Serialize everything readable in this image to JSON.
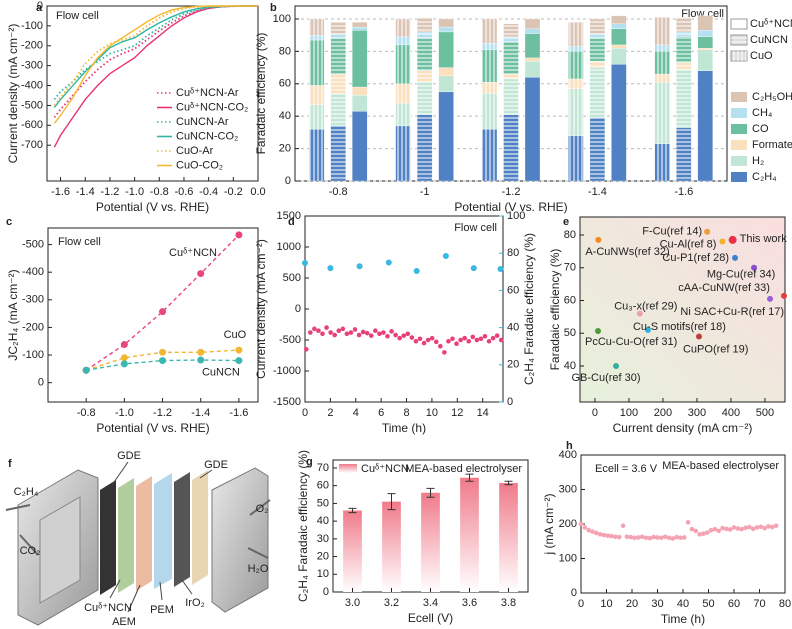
{
  "chart_data": [
    {
      "panel": "a",
      "type": "line",
      "annotation": "Flow cell",
      "xlabel": "Potential (V vs. RHE)",
      "ylabel": "Current density (mA cm⁻²)",
      "x": [
        -1.65,
        -1.6,
        -1.5,
        -1.4,
        -1.3,
        -1.2,
        -1.1,
        -1.0,
        -0.9,
        -0.8,
        -0.7,
        -0.6,
        -0.5,
        -0.4,
        -0.3,
        -0.2,
        -0.1,
        0
      ],
      "xlim": [
        -1.71,
        0
      ],
      "xticks": [
        -1.6,
        -1.4,
        -1.2,
        {
          "value": -1,
          "label": "-1.0"
        },
        -0.8,
        -0.6,
        -0.4,
        -0.2,
        {
          "value": 0,
          "label": "0.0"
        }
      ],
      "ylim": [
        -880,
        0
      ],
      "yticks": [
        -700,
        -600,
        -500,
        -400,
        -300,
        -200,
        -100,
        0
      ],
      "legend": "right",
      "series": [
        {
          "name": "Cuᵟ⁺NCN-Ar",
          "color": "#e8336e",
          "style": "dotted",
          "values": [
            -560,
            -520,
            -450,
            -380,
            -320,
            -270,
            -240,
            -215,
            -170,
            -125,
            -85,
            -50,
            -25,
            -10,
            -3,
            -1,
            0,
            0
          ]
        },
        {
          "name": "Cuᵟ⁺NCN-CO₂",
          "color": "#e8336e",
          "style": "solid",
          "values": [
            -710,
            -650,
            -560,
            -470,
            -400,
            -340,
            -300,
            -260,
            -200,
            -150,
            -100,
            -60,
            -30,
            -12,
            -4,
            -1,
            0,
            0
          ]
        },
        {
          "name": "CuNCN-Ar",
          "color": "#2fb5a5",
          "style": "dotted",
          "values": [
            -470,
            -430,
            -380,
            -320,
            -280,
            -240,
            -220,
            -200,
            -150,
            -110,
            -70,
            -40,
            -20,
            -8,
            -3,
            -1,
            0,
            0
          ]
        },
        {
          "name": "CuNCN-CO₂",
          "color": "#2fb5a5",
          "style": "solid",
          "values": [
            -510,
            -470,
            -400,
            -330,
            -270,
            -210,
            -180,
            -160,
            -120,
            -85,
            -55,
            -30,
            -14,
            -5,
            -2,
            0,
            0,
            0
          ]
        },
        {
          "name": "CuO-Ar",
          "color": "#f5b82e",
          "style": "dotted",
          "values": [
            -500,
            -460,
            -380,
            -290,
            -230,
            -190,
            -170,
            -150,
            -100,
            -60,
            -30,
            -12,
            -4,
            -1,
            0,
            0,
            0,
            0
          ]
        },
        {
          "name": "CuO-CO₂",
          "color": "#f5b82e",
          "style": "solid",
          "values": [
            -590,
            -550,
            -460,
            -350,
            -260,
            -200,
            -160,
            -120,
            -80,
            -45,
            -20,
            -8,
            -2,
            0,
            0,
            0,
            0,
            0
          ]
        }
      ]
    },
    {
      "panel": "b",
      "type": "stacked-bar",
      "annotation": "Flow cell",
      "xlabel": "Potential (V vs. RHE)",
      "ylabel": "Faradaic efficiency (%)",
      "categories": [
        "-0.8",
        "-1",
        "-1.2",
        "-1.4",
        "-1.6"
      ],
      "ylim": [
        0,
        108
      ],
      "yticks": [
        0,
        20,
        40,
        60,
        80,
        100
      ],
      "grid": true,
      "legend": "right",
      "groups": [
        {
          "name": "CuO",
          "color": "#f5b82e",
          "pattern": "vertical"
        },
        {
          "name": "CuNCN",
          "color": "#2fb5a5",
          "pattern": "horizontal"
        },
        {
          "name": "Cuᵟ⁺NCN",
          "color": "#e8336e",
          "pattern": "solid"
        }
      ],
      "series": [
        {
          "name": "C₂H₄",
          "color": "#4f81c4",
          "values": [
            [
              32,
              34,
              43
            ],
            [
              34,
              41,
              55
            ],
            [
              32,
              41,
              64
            ],
            [
              28,
              39,
              72
            ],
            [
              23,
              33,
              68
            ]
          ]
        },
        {
          "name": "H₂",
          "color": "#c2e6d6",
          "values": [
            [
              15,
              20,
              10
            ],
            [
              14,
              20,
              10
            ],
            [
              22,
              22,
              10
            ],
            [
              29,
              31,
              10
            ],
            [
              38,
              36,
              13
            ]
          ]
        },
        {
          "name": "Formate",
          "color": "#fbe0bd",
          "values": [
            [
              12,
              12,
              5
            ],
            [
              12,
              7,
              5
            ],
            [
              7,
              3,
              2
            ],
            [
              6,
              4,
              2
            ],
            [
              5,
              4,
              1
            ]
          ]
        },
        {
          "name": "CO",
          "color": "#6cbf9f",
          "values": [
            [
              28,
              22,
              35
            ],
            [
              24,
              20,
              22
            ],
            [
              20,
              20,
              15
            ],
            [
              17,
              14,
              10
            ],
            [
              14,
              16,
              7
            ]
          ]
        },
        {
          "name": "CH₄",
          "color": "#b5e0f0",
          "values": [
            [
              3,
              3,
              2
            ],
            [
              5,
              4,
              3
            ],
            [
              4,
              3,
              3
            ],
            [
              3,
              3,
              3
            ],
            [
              4,
              3,
              4
            ]
          ]
        },
        {
          "name": "C₂H₅OH",
          "color": "#dcc4b5",
          "values": [
            [
              10,
              7,
              3
            ],
            [
              11,
              9,
              5
            ],
            [
              15,
              8,
              6
            ],
            [
              15,
              9,
              5
            ],
            [
              17,
              9,
              9
            ]
          ]
        }
      ]
    },
    {
      "panel": "c",
      "type": "line",
      "annotation": "Flow cell",
      "xlabel": "Potential (V vs. RHE)",
      "ylabel": "JC₂H₄ (mA cm⁻²)",
      "markers": true,
      "legend": "inline",
      "x": [
        -0.8,
        -1.0,
        -1.2,
        -1.4,
        -1.6
      ],
      "xlim": [
        -0.6,
        -1.7
      ],
      "xticks": [
        -0.8,
        {
          "value": -1,
          "label": "-1.0"
        },
        -1.2,
        -1.4,
        -1.6
      ],
      "ylim": [
        70,
        -560
      ],
      "yticks": [
        0,
        -100,
        -200,
        -300,
        -400,
        -500
      ],
      "series": [
        {
          "name": "Cuᵟ⁺NCN",
          "color": "#e8467f",
          "style": "dashed",
          "values": [
            -45,
            -138,
            -257,
            -395,
            -535
          ]
        },
        {
          "name": "CuO",
          "color": "#f2b632",
          "style": "dashed",
          "values": [
            -45,
            -90,
            -110,
            -110,
            -118
          ]
        },
        {
          "name": "CuNCN",
          "color": "#3bb6b0",
          "style": "dashed",
          "values": [
            -45,
            -68,
            -80,
            -82,
            -80
          ]
        }
      ]
    },
    {
      "panel": "d",
      "type": "scatter",
      "annotation": "Flow cell",
      "xlabel": "Time (h)",
      "ylabel": "Current density (mA cm⁻²)",
      "y2label": "C₂H₄ Faradaic efficiency (%)",
      "xlim": [
        0,
        15.6
      ],
      "xticks": [
        0,
        2,
        4,
        6,
        8,
        10,
        12,
        14
      ],
      "ylim": [
        -1500,
        1500
      ],
      "yticks": [
        -1500,
        -1000,
        -500,
        0,
        500,
        1000,
        1500
      ],
      "y2lim": [
        0,
        100
      ],
      "y2ticks": [
        0,
        20,
        40,
        60,
        80,
        100
      ],
      "series": [
        {
          "color": "#e8407a",
          "x": [
            0.1,
            0.42,
            0.74,
            1.06,
            1.38,
            1.7,
            2.02,
            2.34,
            2.66,
            2.98,
            3.3,
            3.62,
            3.94,
            4.26,
            4.58,
            4.9,
            5.22,
            5.54,
            5.86,
            6.18,
            6.5,
            6.82,
            7.14,
            7.46,
            7.78,
            8.1,
            8.42,
            8.74,
            9.06,
            9.38,
            9.7,
            10.02,
            10.34,
            10.66,
            10.98,
            11.3,
            11.62,
            11.94,
            12.26,
            12.58,
            12.9,
            13.22,
            13.54,
            13.86,
            14.18,
            14.5,
            14.82,
            15.14,
            15.46
          ],
          "values": [
            -650,
            -380,
            -320,
            -350,
            -400,
            -300,
            -380,
            -420,
            -350,
            -320,
            -400,
            -380,
            -330,
            -420,
            -370,
            -390,
            -430,
            -350,
            -400,
            -380,
            -440,
            -360,
            -420,
            -470,
            -430,
            -400,
            -460,
            -520,
            -480,
            -550,
            -500,
            -470,
            -530,
            -600,
            -700,
            -520,
            -480,
            -560,
            -500,
            -470,
            -520,
            -450,
            -500,
            -480,
            -440,
            -520,
            -470,
            -430,
            -500
          ]
        },
        {
          "color": "#39b8e0",
          "axis": "y2",
          "x": [
            0,
            2,
            4.3,
            6.6,
            8.8,
            11.1,
            13.3,
            15.4
          ],
          "values": [
            74.7,
            72,
            73,
            75,
            70.4,
            78.5,
            72,
            71.5
          ]
        }
      ]
    },
    {
      "panel": "e",
      "type": "scatter",
      "xlabel": "Current density (mA cm⁻²)",
      "ylabel": "Faradaic efficiency (%)",
      "xlim": [
        -44,
        559
      ],
      "xticks": [
        0,
        100,
        200,
        300,
        400,
        500
      ],
      "ylim": [
        29,
        85.5
      ],
      "yticks": [
        40,
        50,
        60,
        70,
        80
      ],
      "points": [
        {
          "label": "This work",
          "color": "#e8334a",
          "x": 405,
          "y": 78.5
        },
        {
          "label": "F-Cu(ref 14)",
          "color": "#f29a3a",
          "x": 330,
          "y": 81
        },
        {
          "label": "Cu-Al(ref 8)",
          "color": "#f0b030",
          "x": 375,
          "y": 78
        },
        {
          "label": "A-CuNWs(ref 32)",
          "color": "#f08a20",
          "x": 10,
          "y": 78.5
        },
        {
          "label": "Cu-P1(ref 28)",
          "color": "#3a7fd0",
          "x": 412,
          "y": 73
        },
        {
          "label": "Mg-Cu(ref 34)",
          "color": "#8a4fd0",
          "x": 468,
          "y": 70
        },
        {
          "label": "cAA-CuNW(ref 33)",
          "color": "#e0403a",
          "x": 556,
          "y": 61.4
        },
        {
          "label": "Ni SAC+Cu-R(ref 17)",
          "color": "#9b5fd6",
          "x": 515,
          "y": 60.5
        },
        {
          "label": "Cu₃-x(ref 29)",
          "color": "#f0a0b0",
          "x": 132,
          "y": 56
        },
        {
          "label": "Cu-S motifs(ref 18)",
          "color": "#30b5e0",
          "x": 156,
          "y": 51
        },
        {
          "label": "PcCu-Cu-O(ref 31)",
          "color": "#4a9a3a",
          "x": 9,
          "y": 50.7
        },
        {
          "label": "CuPO(ref 19)",
          "color": "#c0403a",
          "x": 306,
          "y": 49
        },
        {
          "label": "GB-Cu(ref 30)",
          "color": "#30b0a0",
          "x": 62,
          "y": 40
        }
      ]
    },
    {
      "panel": "g",
      "type": "bar",
      "annotation": "MEA-based electrolyser",
      "xlabel": "Ecell (V)",
      "ylabel": "C₂H₄ Faradaic efficiency (%)",
      "categories": [
        "3.0",
        "3.2",
        "3.4",
        "3.6",
        "3.8"
      ],
      "ylim": [
        0,
        74.5
      ],
      "yticks": [
        0,
        10,
        20,
        30,
        40,
        50,
        60,
        70
      ],
      "series": [
        {
          "name": "Cuᵟ⁺NCN",
          "color": "#f07a8a",
          "values": [
            46,
            51,
            56,
            64.5,
            61.5
          ],
          "errors": [
            1.2,
            4.5,
            2.5,
            2,
            1
          ]
        }
      ]
    },
    {
      "panel": "h",
      "type": "scatter",
      "annotation": "MEA-based electrolyser",
      "condition": "Ecell = 3.6 V",
      "xlabel": "Time (h)",
      "ylabel": "j (mA cm⁻²)",
      "xlim": [
        0,
        80
      ],
      "xticks": [
        0,
        10,
        20,
        30,
        40,
        50,
        60,
        70,
        80
      ],
      "ylim": [
        0,
        400
      ],
      "yticks": [
        0,
        100,
        200,
        300,
        400
      ],
      "series": [
        {
          "color": "#f4a3b3",
          "x": [
            0,
            1.5,
            3,
            4.5,
            6,
            7.5,
            9,
            10.5,
            12,
            13.5,
            15,
            16.5,
            18,
            19.5,
            21,
            22.5,
            24,
            25.5,
            27,
            28.5,
            30,
            31.5,
            33,
            34.5,
            36,
            37.5,
            39,
            40.5,
            42,
            43.5,
            45,
            46.5,
            48,
            49.5,
            51,
            52.5,
            54,
            55.5,
            57,
            58.5,
            60,
            61.5,
            63,
            64.5,
            66,
            67.5,
            69,
            70.5,
            72,
            73.5,
            75,
            76.5
          ],
          "values": [
            200,
            190,
            182,
            178,
            174,
            170,
            168,
            166,
            165,
            163,
            162,
            195,
            163,
            162,
            160,
            161,
            163,
            160,
            159,
            162,
            161,
            160,
            163,
            160,
            158,
            162,
            160,
            161,
            205,
            185,
            180,
            170,
            172,
            175,
            182,
            185,
            180,
            188,
            186,
            184,
            190,
            187,
            185,
            189,
            191,
            186,
            190,
            192,
            188,
            193,
            191,
            195
          ]
        }
      ]
    }
  ],
  "diagram": {
    "panel": "f",
    "gde_left": "GDE",
    "gde_right": "GDE",
    "product": "C₂H₄",
    "feed": "CO₂",
    "anode_product": "O₂",
    "anode_feed": "H₂O",
    "cathode": "Cuᵟ⁺NCN",
    "aem": "AEM",
    "pem": "PEM",
    "anode": "IrO₂"
  }
}
